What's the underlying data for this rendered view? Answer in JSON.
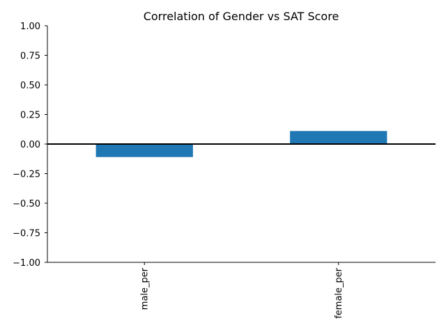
{
  "chart_data": {
    "type": "bar",
    "title": "Correlation of Gender vs SAT Score",
    "xlabel": "",
    "ylabel": "",
    "categories": [
      "male_per",
      "female_per"
    ],
    "values": [
      -0.11,
      0.11
    ],
    "ylim": [
      -1.0,
      1.0
    ],
    "yticks": [
      "−1.00",
      "−0.75",
      "−0.50",
      "−0.25",
      "0.00",
      "0.25",
      "0.50",
      "0.75",
      "1.00"
    ],
    "ytick_values": [
      -1.0,
      -0.75,
      -0.5,
      -0.25,
      0.0,
      0.25,
      0.5,
      0.75,
      1.0
    ],
    "grid": false,
    "zero_line": true,
    "bar_color": "#1f77b4",
    "x_tick_rotation": "vertical"
  }
}
